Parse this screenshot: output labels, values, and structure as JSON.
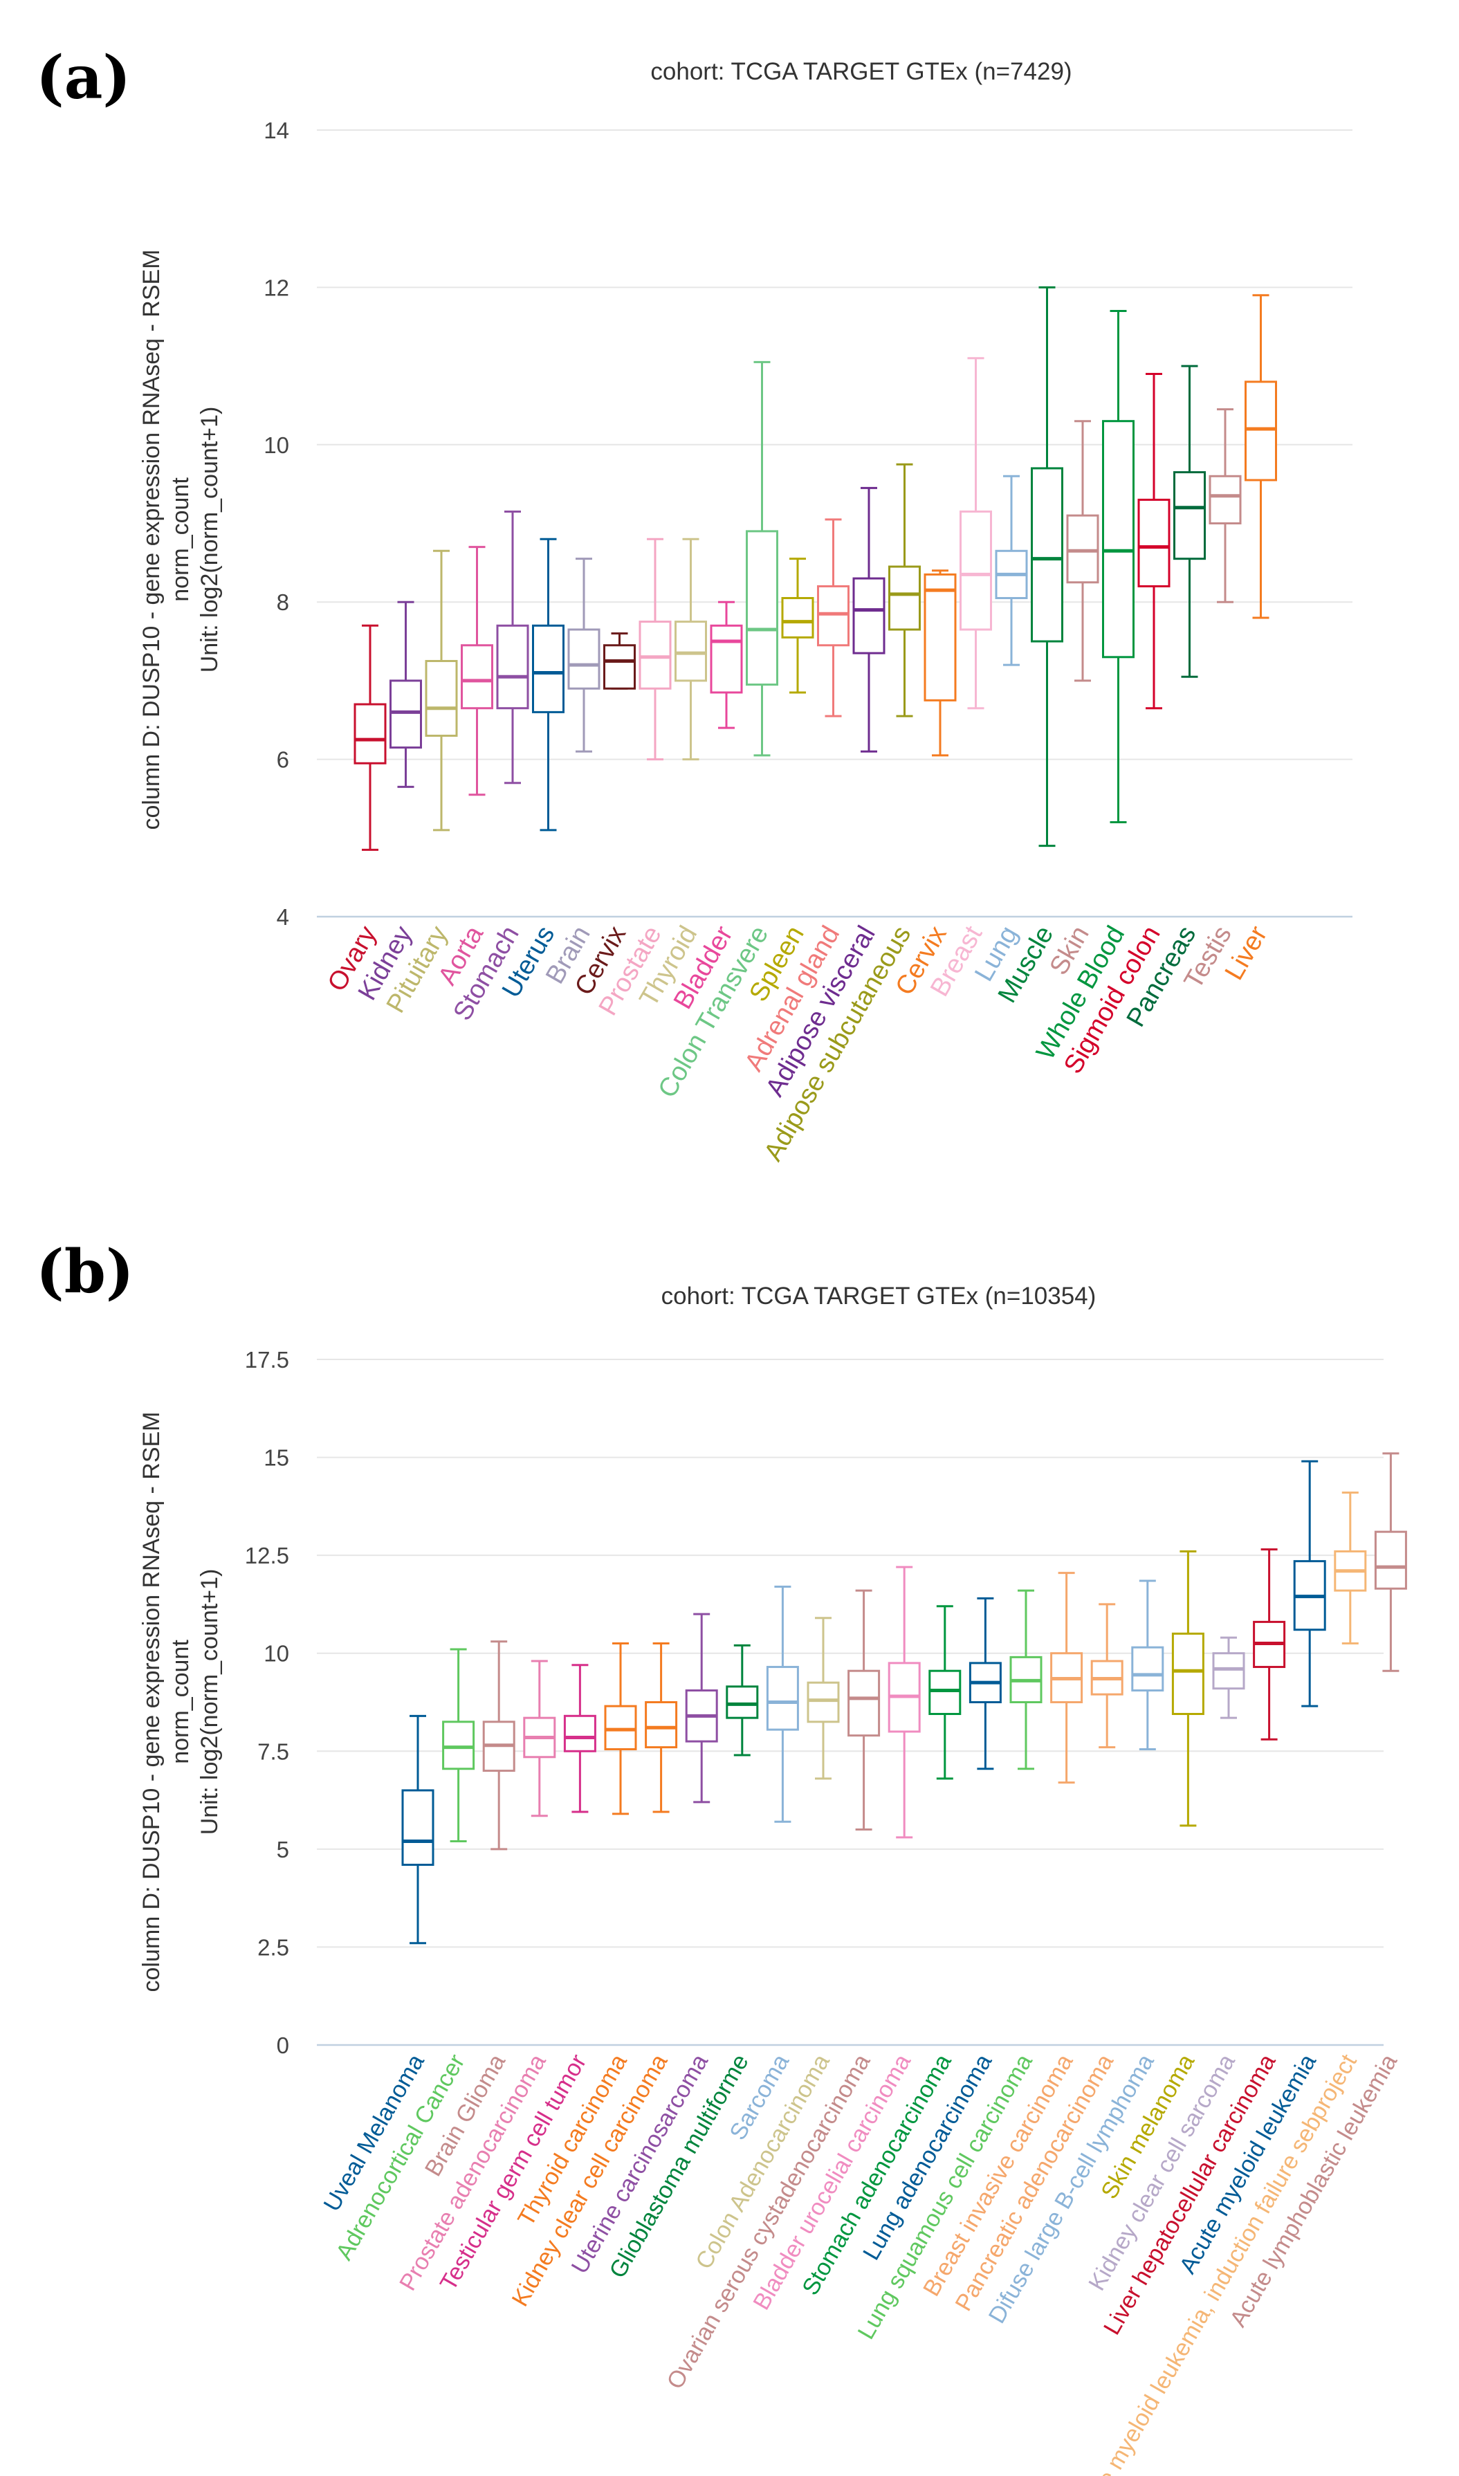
{
  "chart_data": [
    {
      "panel": "(a)",
      "type": "boxplot",
      "title": "cohort: TCGA TARGET GTEx (n=7429)",
      "ylabel": [
        "column D: DUSP10 - gene expression RNAseq - RSEM",
        "norm_count",
        "Unit: log2(norm_count+1)"
      ],
      "ylim": [
        4,
        14
      ],
      "yticks": [
        4,
        6,
        8,
        10,
        12,
        14
      ],
      "categories": [
        "Ovary",
        "Kidney",
        "Pituitary",
        "Aorta",
        "Stomach",
        "Uterus",
        "Brain",
        "Cervix",
        "Prostate",
        "Thyroid",
        "Bladder",
        "Colon Transvere",
        "Spleen",
        "Adrenal gland",
        "Adipose visceral",
        "Adipose subcutaneous",
        "Cervix",
        "Breast",
        "Lung",
        "Muscle",
        "Skin",
        "Whole Blood",
        "Sigmoid colon",
        "Pancreas",
        "Testis",
        "Liver"
      ],
      "colors": [
        "#c8102e",
        "#7b3f98",
        "#bdb76b",
        "#e0559e",
        "#8e4fa3",
        "#005b96",
        "#a09ab8",
        "#6a1a1a",
        "#f4a6c3",
        "#cdc48c",
        "#e8479b",
        "#6dc785",
        "#b5a900",
        "#f07a7a",
        "#6e2c8f",
        "#9a9a1a",
        "#f47b20",
        "#f7b6d2",
        "#8ab3d8",
        "#00843d",
        "#c48b8b",
        "#00963f",
        "#d4002a",
        "#006b3c",
        "#c48b8b",
        "#f47b20"
      ],
      "boxes": [
        [
          4.85,
          5.95,
          6.25,
          6.7,
          7.7
        ],
        [
          5.65,
          6.15,
          6.6,
          7.0,
          8.0
        ],
        [
          5.1,
          6.3,
          6.65,
          7.25,
          8.65
        ],
        [
          5.55,
          6.65,
          7.0,
          7.45,
          8.7
        ],
        [
          5.7,
          6.65,
          7.05,
          7.7,
          9.15
        ],
        [
          5.1,
          6.6,
          7.1,
          7.7,
          8.8
        ],
        [
          6.1,
          6.9,
          7.2,
          7.65,
          8.55
        ],
        [
          6.9,
          6.9,
          7.25,
          7.45,
          7.6
        ],
        [
          6.0,
          6.9,
          7.3,
          7.75,
          8.8
        ],
        [
          6.0,
          7.0,
          7.35,
          7.75,
          8.8
        ],
        [
          6.4,
          6.85,
          7.5,
          7.7,
          8.0
        ],
        [
          6.05,
          6.95,
          7.65,
          8.9,
          11.05
        ],
        [
          6.85,
          7.55,
          7.75,
          8.05,
          8.55
        ],
        [
          6.55,
          7.45,
          7.85,
          8.2,
          9.05
        ],
        [
          6.1,
          7.35,
          7.9,
          8.3,
          9.45
        ],
        [
          6.55,
          7.65,
          8.1,
          8.45,
          9.75
        ],
        [
          6.05,
          6.75,
          8.15,
          8.35,
          8.4
        ],
        [
          6.65,
          7.65,
          8.35,
          9.15,
          11.1
        ],
        [
          7.2,
          8.05,
          8.35,
          8.65,
          9.6
        ],
        [
          4.9,
          7.5,
          8.55,
          9.7,
          12.0
        ],
        [
          7.0,
          8.25,
          8.65,
          9.1,
          10.3
        ],
        [
          5.2,
          7.3,
          8.65,
          10.3,
          11.7
        ],
        [
          6.65,
          8.2,
          8.7,
          9.3,
          10.9
        ],
        [
          7.05,
          8.55,
          9.2,
          9.65,
          11.0
        ],
        [
          8.0,
          9.0,
          9.35,
          9.6,
          10.45
        ],
        [
          7.8,
          9.55,
          10.2,
          10.8,
          11.9
        ]
      ]
    },
    {
      "panel": "(b)",
      "type": "boxplot",
      "title": "cohort: TCGA TARGET GTEx (n=10354)",
      "ylabel": [
        "column D: DUSP10 - gene expression RNAseq - RSEM",
        "norm_count",
        "Unit: log2(norm_count+1)"
      ],
      "ylim": [
        0,
        17.5
      ],
      "yticks": [
        0,
        2.5,
        5,
        7.5,
        10,
        12.5,
        15,
        17.5
      ],
      "categories": [
        "Uveal Melanoma",
        "Adrenocortical Cancer",
        "Brain Glioma",
        "Prostate adenocarcinoma",
        "Testicular germ cell tumor",
        "Thyroid carcinoma",
        "Kidney clear cell carcinoma",
        "Uterine carcinosarcoma",
        "Glioblastoma multiforme",
        "Sarcoma",
        "Colon Adenocarcinoma",
        "Ovarian serous cystadenocarcinoma",
        "Bladder urocelial carcinoma",
        "Stomach adenocarcinoma",
        "Lung adenocarcinoma",
        "Lung squamous cell carcinoma",
        "Breast invasive carcinoma",
        "Pancreatic adenocarcinoma",
        "Difuse large B-cell lymphoma",
        "Skin melanoma",
        "Kidney clear cell sarcoma",
        "Liver hepatocellular carcinoma",
        "Acute myeloid leukemia",
        "Acute myeloid leukemia, induction failure sebproject",
        "Acute lymphoblastic leukemia"
      ],
      "colors": [
        "#005b96",
        "#5fc85f",
        "#c48b8b",
        "#e87fb0",
        "#d62f8a",
        "#f47b20",
        "#f47b20",
        "#8e4fa3",
        "#00843d",
        "#8ab3d8",
        "#cdc48c",
        "#c48b8b",
        "#f08cc0",
        "#00963f",
        "#005b96",
        "#5fc85f",
        "#f5a76c",
        "#f5a76c",
        "#8ab3d8",
        "#b5a900",
        "#b6a8c8",
        "#c8102e",
        "#005b96",
        "#f5b675",
        "#c48b8b"
      ],
      "boxes": [
        [
          2.6,
          4.6,
          5.2,
          6.5,
          8.4
        ],
        [
          5.2,
          7.05,
          7.6,
          8.25,
          10.1
        ],
        [
          5.0,
          7.0,
          7.65,
          8.25,
          10.3
        ],
        [
          5.85,
          7.35,
          7.85,
          8.35,
          9.8
        ],
        [
          5.95,
          7.5,
          7.85,
          8.4,
          9.7
        ],
        [
          5.9,
          7.55,
          8.05,
          8.65,
          10.25
        ],
        [
          5.95,
          7.6,
          8.1,
          8.75,
          10.25
        ],
        [
          6.2,
          7.75,
          8.4,
          9.05,
          11.0
        ],
        [
          7.4,
          8.35,
          8.7,
          9.15,
          10.2
        ],
        [
          5.7,
          8.05,
          8.75,
          9.65,
          11.7
        ],
        [
          6.8,
          8.25,
          8.8,
          9.25,
          10.9
        ],
        [
          5.5,
          7.9,
          8.85,
          9.55,
          11.6
        ],
        [
          5.3,
          8.0,
          8.9,
          9.75,
          12.2
        ],
        [
          6.8,
          8.45,
          9.05,
          9.55,
          11.2
        ],
        [
          7.05,
          8.75,
          9.25,
          9.75,
          11.4
        ],
        [
          7.05,
          8.75,
          9.3,
          9.9,
          11.6
        ],
        [
          6.7,
          8.75,
          9.35,
          10.0,
          12.05
        ],
        [
          7.6,
          8.95,
          9.35,
          9.8,
          11.25
        ],
        [
          7.55,
          9.05,
          9.45,
          10.15,
          11.85
        ],
        [
          5.6,
          8.45,
          9.55,
          10.5,
          12.6
        ],
        [
          8.35,
          9.1,
          9.6,
          10.0,
          10.4
        ],
        [
          7.8,
          9.65,
          10.25,
          10.8,
          12.65
        ],
        [
          8.65,
          10.6,
          11.45,
          12.35,
          14.9
        ],
        [
          10.25,
          11.6,
          12.1,
          12.6,
          14.1
        ],
        [
          9.55,
          11.65,
          12.2,
          13.1,
          15.1
        ]
      ]
    }
  ]
}
